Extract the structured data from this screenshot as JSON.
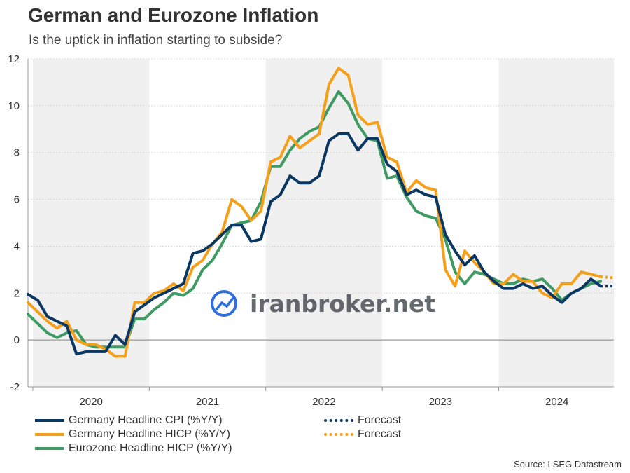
{
  "title": "German and Eurozone Inflation",
  "subtitle": "Is the uptick in inflation starting to subside?",
  "source": "Source: LSEG Datastream",
  "watermark": "iranbroker.net",
  "legend": {
    "cpi": "Germany Headline CPI (%Y/Y)",
    "hicp": "Germany Headline HICP (%Y/Y)",
    "ez": "Eurozone Headline HICP (%Y/Y)",
    "forecast1": "Forecast",
    "forecast2": "Forecast"
  },
  "colors": {
    "cpi": "#0b3763",
    "hicp": "#f5a01a",
    "ez": "#3f9b63",
    "shade": "#f0f0f0",
    "grid": "#d8d8d8",
    "axis": "#999999"
  },
  "chart_data": {
    "type": "line",
    "title": "German and Eurozone Inflation",
    "subtitle": "Is the uptick in inflation starting to subside?",
    "ylim": [
      -2,
      12
    ],
    "yticks": [
      "-2",
      "0",
      "2",
      "4",
      "6",
      "8",
      "10",
      "12"
    ],
    "xlabels": [
      "2020",
      "2021",
      "2022",
      "2023",
      "2024"
    ],
    "shaded_years": [
      "2020",
      "2022",
      "2024"
    ],
    "x_start": "2019-12",
    "x_end": "2024-12",
    "grid": "horizontal",
    "legend_position": "bottom",
    "series": [
      {
        "name": "Germany Headline CPI (%Y/Y)",
        "key": "cpi",
        "values": [
          1.95,
          1.7,
          1.0,
          0.8,
          0.6,
          -0.6,
          -0.5,
          -0.5,
          -0.5,
          0.2,
          -0.2,
          1.2,
          1.5,
          1.8,
          2.0,
          2.2,
          2.4,
          3.7,
          3.8,
          4.1,
          4.5,
          4.9,
          4.9,
          4.2,
          4.3,
          5.9,
          6.2,
          7.0,
          6.7,
          6.7,
          7.0,
          8.5,
          8.8,
          8.8,
          8.1,
          8.6,
          8.6,
          7.5,
          7.2,
          6.2,
          6.4,
          6.2,
          6.1,
          4.5,
          3.8,
          3.2,
          3.6,
          2.9,
          2.5,
          2.2,
          2.2,
          2.4,
          2.2,
          2.3,
          1.9,
          1.6,
          2.0,
          2.2,
          2.6,
          2.3
        ]
      },
      {
        "name": "Germany Headline HICP (%Y/Y)",
        "key": "hicp",
        "values": [
          1.6,
          1.2,
          0.8,
          0.5,
          0.8,
          0.0,
          -0.2,
          -0.2,
          -0.4,
          -0.7,
          -0.7,
          1.6,
          1.6,
          2.0,
          2.1,
          2.4,
          2.1,
          3.1,
          3.4,
          4.1,
          4.6,
          6.0,
          5.7,
          5.1,
          5.5,
          7.6,
          7.8,
          8.7,
          8.2,
          8.5,
          8.8,
          10.9,
          11.6,
          11.3,
          9.6,
          9.2,
          9.3,
          7.8,
          7.6,
          6.3,
          6.8,
          6.5,
          6.4,
          3.0,
          2.3,
          3.8,
          3.3,
          2.9,
          2.4,
          2.4,
          2.8,
          2.5,
          2.5,
          2.0,
          1.8,
          2.4,
          2.4,
          2.9,
          2.8,
          2.7
        ]
      },
      {
        "name": "Eurozone Headline HICP (%Y/Y)",
        "key": "ez",
        "values": [
          1.1,
          0.7,
          0.3,
          0.1,
          0.3,
          0.4,
          -0.2,
          -0.3,
          -0.3,
          -0.3,
          -0.3,
          0.9,
          0.9,
          1.3,
          1.6,
          2.0,
          1.9,
          2.2,
          3.0,
          3.4,
          4.1,
          4.9,
          5.0,
          5.1,
          5.9,
          7.4,
          7.4,
          8.1,
          8.6,
          8.9,
          9.1,
          9.9,
          10.6,
          10.1,
          9.2,
          8.6,
          8.5,
          6.9,
          7.0,
          6.1,
          5.5,
          5.3,
          5.2,
          4.3,
          2.9,
          2.4,
          2.9,
          2.8,
          2.6,
          2.4,
          2.4,
          2.6,
          2.5,
          2.6,
          2.2,
          1.7,
          2.0,
          2.2,
          2.4,
          2.5
        ]
      },
      {
        "name": "Forecast",
        "key": "cpi_fc",
        "start_index": 59,
        "values": [
          2.3,
          2.3
        ]
      },
      {
        "name": "Forecast",
        "key": "hicp_fc",
        "start_index": 59,
        "values": [
          2.7,
          2.65
        ]
      }
    ]
  }
}
